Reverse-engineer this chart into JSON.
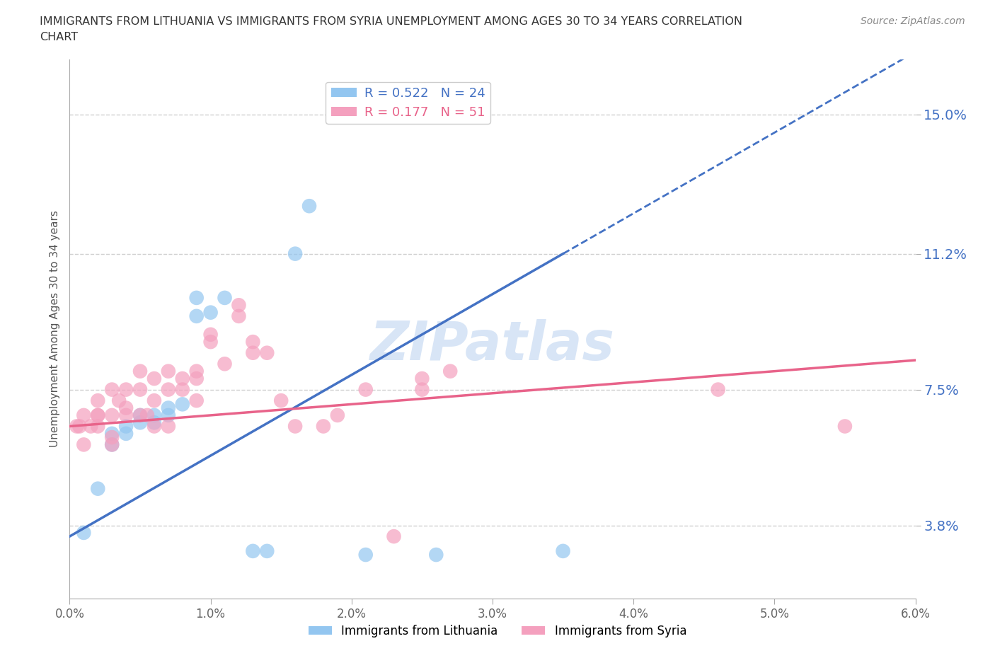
{
  "title": "IMMIGRANTS FROM LITHUANIA VS IMMIGRANTS FROM SYRIA UNEMPLOYMENT AMONG AGES 30 TO 34 YEARS CORRELATION\nCHART",
  "source": "Source: ZipAtlas.com",
  "ylabel": "Unemployment Among Ages 30 to 34 years",
  "xlim": [
    0.0,
    0.06
  ],
  "ylim": [
    0.018,
    0.165
  ],
  "xticks": [
    0.0,
    0.01,
    0.02,
    0.03,
    0.04,
    0.05,
    0.06
  ],
  "xticklabels": [
    "0.0%",
    "1.0%",
    "2.0%",
    "3.0%",
    "4.0%",
    "5.0%",
    "6.0%"
  ],
  "ytick_positions": [
    0.038,
    0.075,
    0.112,
    0.15
  ],
  "yticklabels": [
    "3.8%",
    "7.5%",
    "11.2%",
    "15.0%"
  ],
  "grid_color": "#d0d0d0",
  "background_color": "#ffffff",
  "lithuania_color": "#93C6F0",
  "syria_color": "#F4A0BE",
  "lithuania_line_color": "#4472C4",
  "syria_line_color": "#E8638A",
  "R_lithuania": 0.522,
  "N_lithuania": 24,
  "R_syria": 0.177,
  "N_syria": 51,
  "watermark": "ZIPatlas",
  "lithuania_x": [
    0.001,
    0.002,
    0.003,
    0.003,
    0.004,
    0.004,
    0.005,
    0.005,
    0.006,
    0.006,
    0.007,
    0.007,
    0.008,
    0.009,
    0.009,
    0.01,
    0.011,
    0.013,
    0.014,
    0.016,
    0.017,
    0.021,
    0.026,
    0.035
  ],
  "lithuania_y": [
    0.036,
    0.048,
    0.06,
    0.063,
    0.063,
    0.065,
    0.066,
    0.068,
    0.066,
    0.068,
    0.068,
    0.07,
    0.071,
    0.095,
    0.1,
    0.096,
    0.1,
    0.031,
    0.031,
    0.112,
    0.125,
    0.03,
    0.03,
    0.031
  ],
  "syria_x": [
    0.0005,
    0.0007,
    0.001,
    0.001,
    0.0015,
    0.002,
    0.002,
    0.002,
    0.002,
    0.003,
    0.003,
    0.003,
    0.003,
    0.0035,
    0.004,
    0.004,
    0.004,
    0.005,
    0.005,
    0.005,
    0.0055,
    0.006,
    0.006,
    0.006,
    0.007,
    0.007,
    0.007,
    0.008,
    0.008,
    0.009,
    0.009,
    0.009,
    0.01,
    0.01,
    0.011,
    0.012,
    0.012,
    0.013,
    0.013,
    0.014,
    0.015,
    0.016,
    0.018,
    0.019,
    0.021,
    0.023,
    0.025,
    0.025,
    0.027,
    0.046,
    0.055
  ],
  "syria_y": [
    0.065,
    0.065,
    0.06,
    0.068,
    0.065,
    0.065,
    0.068,
    0.068,
    0.072,
    0.06,
    0.062,
    0.068,
    0.075,
    0.072,
    0.068,
    0.07,
    0.075,
    0.068,
    0.075,
    0.08,
    0.068,
    0.065,
    0.072,
    0.078,
    0.065,
    0.075,
    0.08,
    0.075,
    0.078,
    0.072,
    0.078,
    0.08,
    0.088,
    0.09,
    0.082,
    0.095,
    0.098,
    0.085,
    0.088,
    0.085,
    0.072,
    0.065,
    0.065,
    0.068,
    0.075,
    0.035,
    0.075,
    0.078,
    0.08,
    0.075,
    0.065
  ],
  "lith_line_x0": 0.0,
  "lith_line_y0": 0.035,
  "lith_line_x1": 0.035,
  "lith_line_y1": 0.112,
  "syria_line_x0": 0.0,
  "syria_line_y0": 0.065,
  "syria_line_x1": 0.06,
  "syria_line_y1": 0.083
}
